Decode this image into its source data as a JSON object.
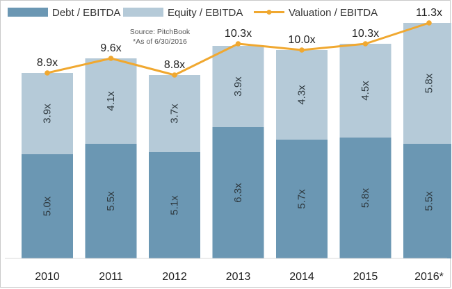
{
  "chart_data": {
    "type": "bar",
    "stacked": true,
    "categories": [
      "2010",
      "2011",
      "2012",
      "2013",
      "2014",
      "2015",
      "2016*"
    ],
    "series": [
      {
        "name": "Debt / EBITDA",
        "type": "bar",
        "color": "#6b97b3",
        "values": [
          5.0,
          5.5,
          5.1,
          6.3,
          5.7,
          5.8,
          5.5
        ],
        "labels": [
          "5.0x",
          "5.5x",
          "5.1x",
          "6.3x",
          "5.7x",
          "5.8x",
          "5.5x"
        ]
      },
      {
        "name": "Equity / EBITDA",
        "type": "bar",
        "color": "#b5cad8",
        "values": [
          3.9,
          4.1,
          3.7,
          3.9,
          4.3,
          4.5,
          5.8
        ],
        "labels": [
          "3.9x",
          "4.1x",
          "3.7x",
          "3.9x",
          "4.3x",
          "4.5x",
          "5.8x"
        ]
      },
      {
        "name": "Valuation / EBITDA",
        "type": "line",
        "color": "#f0a830",
        "values": [
          8.9,
          9.6,
          8.8,
          10.3,
          10.0,
          10.3,
          11.3
        ],
        "labels": [
          "8.9x",
          "9.6x",
          "8.8x",
          "10.3x",
          "10.0x",
          "10.3x",
          "11.3x"
        ]
      }
    ],
    "ylim": [
      0,
      12
    ],
    "grid": false,
    "legend": "top",
    "source": [
      "Source: PitchBook",
      "*As of 6/30/2016"
    ]
  }
}
